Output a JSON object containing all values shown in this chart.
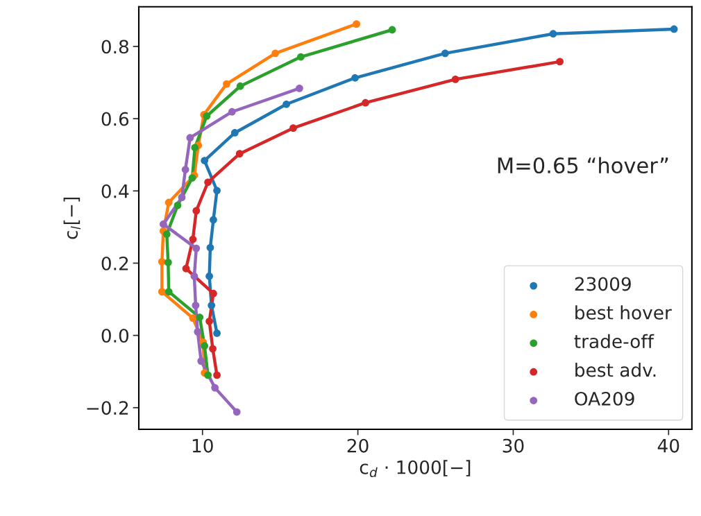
{
  "chart_data": {
    "type": "line",
    "xlabel": "c$_{d}$ · 1000[−]",
    "ylabel": "c$_{l}$[−]",
    "annotations": [
      "M=0.65 “hover”"
    ],
    "xlim": [
      5.9,
      41.5
    ],
    "ylim": [
      -0.26,
      0.91
    ],
    "xticks": [
      10,
      20,
      30,
      40
    ],
    "yticks": [
      {
        "value": -0.2,
        "label": "−0.2"
      },
      {
        "value": 0.0,
        "label": "0.0"
      },
      {
        "value": 0.2,
        "label": "0.2"
      },
      {
        "value": 0.4,
        "label": "0.4"
      },
      {
        "value": 0.6,
        "label": "0.6"
      },
      {
        "value": 0.8,
        "label": "0.8"
      }
    ],
    "marker": "circle",
    "legend": "bottom right",
    "grid": false,
    "series": [
      {
        "name": "23009",
        "color": "#1f77b4",
        "x": [
          10.93,
          10.58,
          10.44,
          10.5,
          10.7,
          10.93,
          10.13,
          12.08,
          15.4,
          19.82,
          25.62,
          32.57,
          40.35
        ],
        "values": [
          0.006,
          0.083,
          0.164,
          0.243,
          0.32,
          0.401,
          0.484,
          0.561,
          0.64,
          0.713,
          0.781,
          0.835,
          0.848
        ]
      },
      {
        "name": "best hover",
        "color": "#ff7f0e",
        "x": [
          10.13,
          10.04,
          9.38,
          7.39,
          7.39,
          7.48,
          7.83,
          9.47,
          9.73,
          10.09,
          11.55,
          14.69,
          19.91
        ],
        "values": [
          -0.104,
          -0.019,
          0.048,
          0.121,
          0.204,
          0.289,
          0.368,
          0.443,
          0.526,
          0.611,
          0.696,
          0.781,
          0.862
        ]
      },
      {
        "name": "trade-off",
        "color": "#2ca02c",
        "x": [
          10.35,
          10.13,
          9.82,
          7.83,
          7.79,
          7.7,
          8.4,
          9.34,
          9.51,
          10.27,
          12.43,
          16.33,
          22.21
        ],
        "values": [
          -0.11,
          -0.029,
          0.05,
          0.121,
          0.202,
          0.28,
          0.36,
          0.436,
          0.52,
          0.607,
          0.69,
          0.771,
          0.846
        ]
      },
      {
        "name": "best adv.",
        "color": "#d62728",
        "x": [
          10.93,
          10.66,
          10.44,
          10.7,
          8.94,
          9.38,
          9.6,
          10.35,
          12.39,
          15.84,
          20.49,
          26.28,
          33.0
        ],
        "values": [
          -0.11,
          -0.037,
          0.039,
          0.116,
          0.185,
          0.266,
          0.345,
          0.424,
          0.503,
          0.574,
          0.644,
          0.709,
          0.758
        ]
      },
      {
        "name": "OA209",
        "color": "#9467bd",
        "x": [
          12.21,
          10.8,
          9.91,
          9.69,
          9.56,
          9.47,
          9.6,
          7.48,
          8.67,
          8.9,
          9.2,
          11.9,
          16.24
        ],
        "values": [
          -0.212,
          -0.145,
          -0.071,
          0.01,
          0.083,
          0.164,
          0.241,
          0.308,
          0.382,
          0.459,
          0.547,
          0.619,
          0.684
        ]
      }
    ]
  }
}
